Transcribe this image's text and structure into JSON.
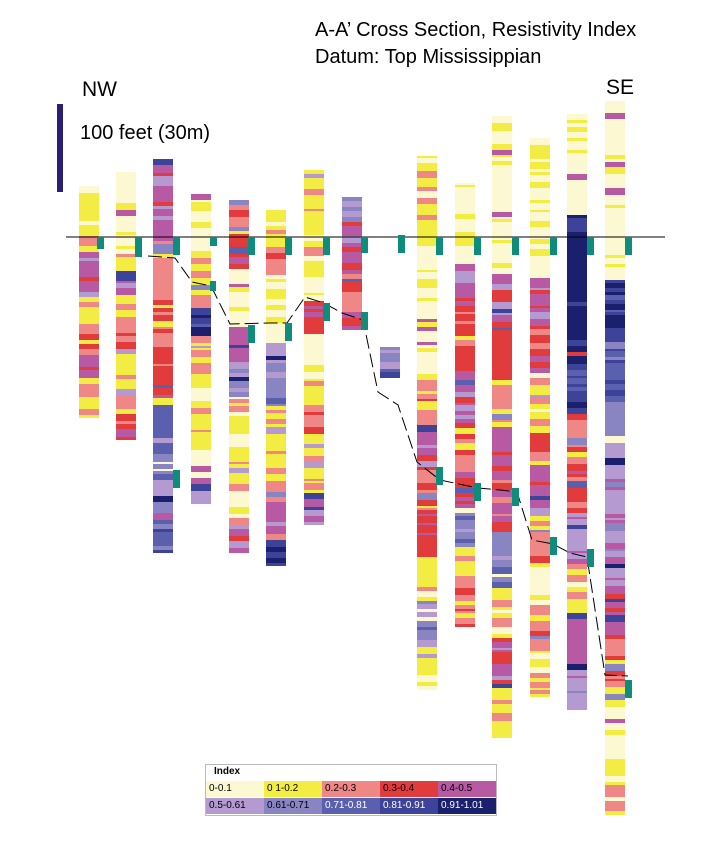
{
  "title": {
    "line1": "A-A’ Cross Section, Resistivity Index",
    "line2": "Datum: Top Mississippian"
  },
  "labels": {
    "left": "NW",
    "right": "SE"
  },
  "scale": {
    "label": "100 feet (30m)"
  },
  "legend": {
    "title": "Index",
    "items": [
      {
        "label": "0-0.1",
        "color": "#fbf8d2"
      },
      {
        "label": "0 1-0.2",
        "color": "#f3ec43"
      },
      {
        "label": "0.2-0.3",
        "color": "#ef8787"
      },
      {
        "label": "0.3-0.4",
        "color": "#e23b3b"
      },
      {
        "label": "0.4-0.5",
        "color": "#b75aa3"
      },
      {
        "label": "0.5-0.61",
        "color": "#b49ad0"
      },
      {
        "label": "0.61-0.71",
        "color": "#8985c2"
      },
      {
        "label": "0.71-0.81",
        "color": "#5b60ae"
      },
      {
        "label": "0.81-0.91",
        "color": "#3e439a"
      },
      {
        "label": "0.91-1.01",
        "color": "#1a1f6e"
      }
    ]
  },
  "colors": {
    "datum_line": "#000000",
    "formation_marker": "#0e8c7c",
    "scale_bar": "#2b1f73"
  }
}
